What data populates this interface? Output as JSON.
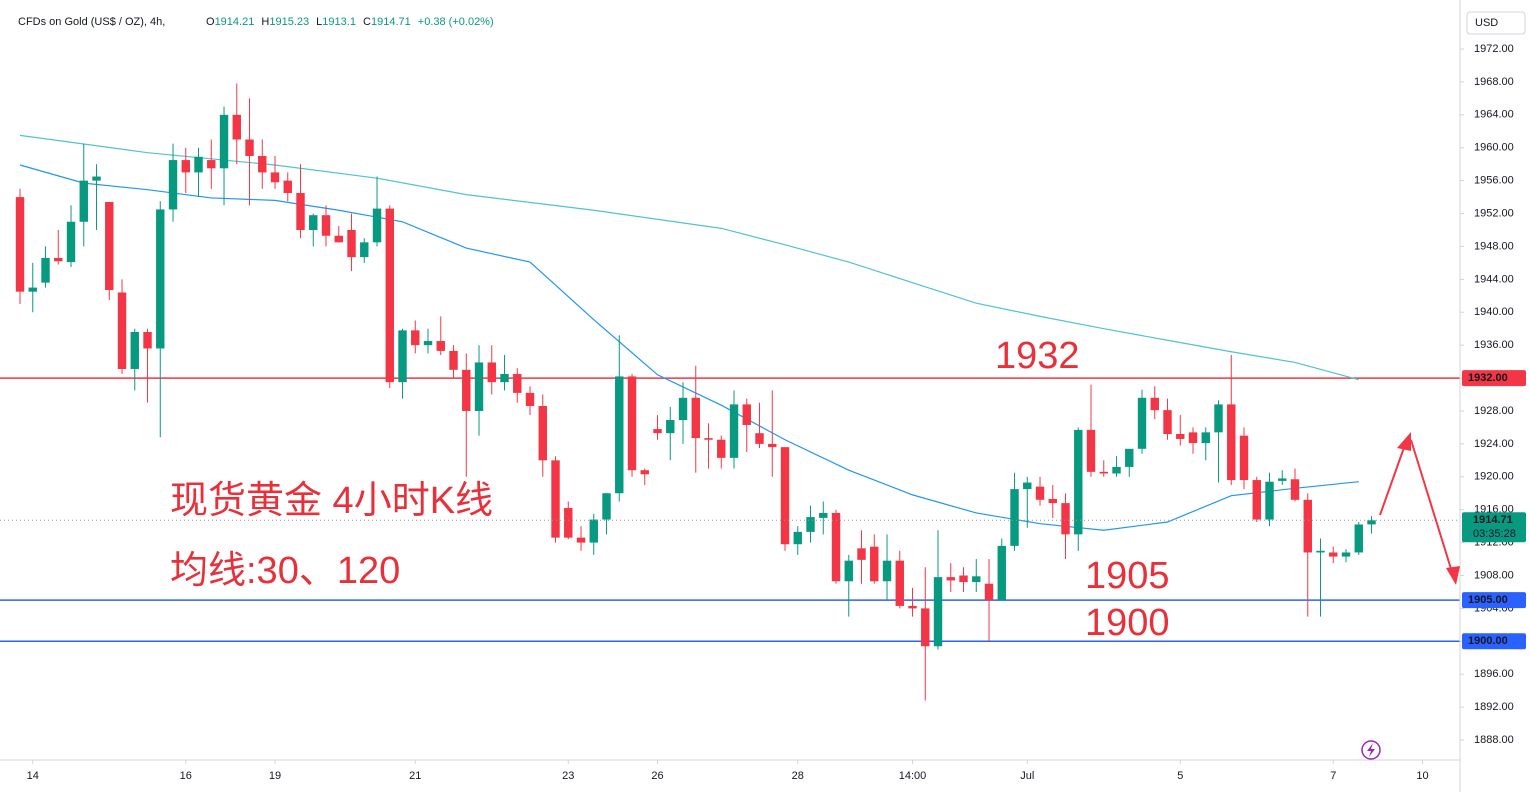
{
  "chart_data": {
    "type": "candlestick",
    "title": "CFDs on Gold (US$ / OZ), 4h,",
    "change": "+0.38 (+0.02%)",
    "ohlc_letters": [
      "O",
      "H",
      "L",
      "C"
    ],
    "currency": "USD",
    "countdown": "03:35:28",
    "up_color": "#089981",
    "down_color": "#f23645",
    "grid": false,
    "x": [
      0,
      1,
      2,
      3,
      4,
      5,
      6,
      7,
      8,
      9,
      10,
      11,
      12,
      13,
      14,
      15,
      16,
      17,
      18,
      19,
      20,
      21,
      22,
      23,
      24,
      25,
      26,
      27,
      28,
      29,
      30,
      31,
      32,
      33,
      34,
      35,
      36,
      37,
      38,
      39,
      40,
      41,
      42,
      43,
      44,
      45,
      46,
      47,
      48,
      49,
      50,
      51,
      52,
      53,
      54,
      55,
      56,
      57,
      58,
      59,
      60,
      61,
      62,
      63,
      64,
      65,
      66,
      67,
      68,
      69,
      70,
      71,
      72,
      73,
      74,
      75,
      76,
      77,
      78,
      79,
      80,
      81,
      82,
      83,
      84,
      85,
      86,
      87,
      88,
      89,
      90,
      91,
      92,
      93,
      94,
      95,
      96,
      97,
      98,
      99,
      100,
      101,
      102,
      103,
      104,
      105,
      106
    ],
    "open": [
      1954,
      1942.5,
      1943.6,
      1946.6,
      1946.1,
      1951,
      1956,
      1953.4,
      1942.4,
      1933.1,
      1937.6,
      1935.6,
      1952.5,
      1958.5,
      1957,
      1958.5,
      1957.5,
      1964,
      1961,
      1959,
      1957,
      1956,
      1954.5,
      1950,
      1951.8,
      1949.3,
      1950,
      1946.7,
      1948.5,
      1952.6,
      1931.5,
      1937.8,
      1936,
      1936.5,
      1935.3,
      1933,
      1928,
      1933.9,
      1931.5,
      1932.5,
      1930.2,
      1928.6,
      1922,
      1916.2,
      1912.6,
      1912,
      1914.8,
      1918,
      1932.2,
      1920.8,
      1925.8,
      1925.3,
      1926.9,
      1929.6,
      1924.7,
      1924.5,
      1922.3,
      1928.8,
      1925.3,
      1924,
      1923.6,
      1911.8,
      1913.3,
      1915,
      1915.6,
      1907.3,
      1911.3,
      1911.5,
      1907.3,
      1909.8,
      1904.3,
      1904,
      1899.4,
      1907.8,
      1908,
      1907.2,
      1907,
      1905,
      1911.6,
      1918.5,
      1918.8,
      1917.3,
      1916.8,
      1913,
      1925.7,
      1920.6,
      1920.4,
      1921.2,
      1923.4,
      1929.6,
      1928.1,
      1925.2,
      1925.4,
      1924.1,
      1925.4,
      1928.8,
      1925,
      1919.6,
      1914.8,
      1919.5,
      1919.7,
      1917.2,
      1910.8,
      1910.8,
      1910.3,
      1910.8,
      1914.21
    ],
    "high": [
      1955,
      1946,
      1948,
      1950,
      1953,
      1960.5,
      1958,
      1953.4,
      1944,
      1938,
      1938,
      1953.5,
      1960.5,
      1960,
      1960,
      1961,
      1965,
      1967.8,
      1966,
      1961,
      1959,
      1957,
      1958,
      1952,
      1953,
      1950.5,
      1952,
      1949,
      1956.5,
      1953,
      1938,
      1939,
      1938,
      1939.5,
      1936,
      1935,
      1936,
      1936,
      1934.8,
      1933.2,
      1931,
      1930,
      1922.5,
      1917,
      1914,
      1915.5,
      1918,
      1937.2,
      1932.5,
      1921,
      1927.5,
      1928.5,
      1931.5,
      1933.5,
      1926.5,
      1925,
      1930.5,
      1929.5,
      1929,
      1930.5,
      1923.6,
      1914,
      1916.5,
      1917,
      1916,
      1910.5,
      1913.5,
      1913,
      1913,
      1911,
      1906.5,
      1909,
      1913.5,
      1909.5,
      1909,
      1910,
      1910,
      1912.5,
      1920.5,
      1920,
      1920,
      1919,
      1918,
      1926,
      1931.2,
      1922,
      1922.5,
      1922.5,
      1930.6,
      1931,
      1929.5,
      1927.5,
      1926,
      1926,
      1929.3,
      1934.8,
      1926,
      1920,
      1920.5,
      1920.8,
      1921,
      1918,
      1912.5,
      1911.5,
      1911.2,
      1914.5,
      1915.23
    ],
    "low": [
      1941,
      1940,
      1943,
      1945.8,
      1945.5,
      1948,
      1950,
      1941.5,
      1932.5,
      1930.5,
      1929,
      1924.8,
      1951,
      1954.5,
      1954,
      1955,
      1953,
      1958,
      1953,
      1955,
      1955,
      1953.5,
      1949,
      1948,
      1948,
      1948.5,
      1945,
      1946,
      1948,
      1930.8,
      1929.5,
      1935,
      1935,
      1934.8,
      1932,
      1920,
      1925,
      1930,
      1930.5,
      1929,
      1927.5,
      1920,
      1912,
      1912.4,
      1911,
      1910.5,
      1913,
      1917,
      1920,
      1919,
      1924.5,
      1922,
      1924,
      1920.5,
      1921,
      1921,
      1921,
      1923,
      1923.5,
      1920,
      1911,
      1910.5,
      1912,
      1913,
      1907,
      1903,
      1907,
      1907,
      1905,
      1904,
      1903,
      1892.8,
      1899,
      1906,
      1906,
      1906,
      1900,
      1905,
      1911,
      1913.8,
      1916.5,
      1915,
      1910,
      1911,
      1920,
      1920,
      1920,
      1920,
      1922.8,
      1927,
      1924.5,
      1923.8,
      1922.8,
      1922,
      1919.3,
      1919,
      1918.5,
      1914.5,
      1914,
      1919,
      1917,
      1903,
      1903,
      1909.5,
      1909.6,
      1910.5,
      1913.1
    ],
    "close": [
      1942.5,
      1943,
      1946.6,
      1946.2,
      1951,
      1956,
      1956.5,
      1942.7,
      1933.1,
      1937.6,
      1935.6,
      1952.5,
      1958.5,
      1957,
      1958.9,
      1957.5,
      1964,
      1961,
      1959,
      1957,
      1955.8,
      1954.5,
      1950,
      1951.8,
      1949.3,
      1948.5,
      1946.7,
      1948.5,
      1952.6,
      1931.5,
      1937.8,
      1936,
      1936.5,
      1935.3,
      1933,
      1928,
      1933.9,
      1931.5,
      1932.5,
      1930.2,
      1928.6,
      1922,
      1912.6,
      1912.6,
      1912,
      1914.8,
      1918,
      1932.2,
      1920.8,
      1920.3,
      1925.3,
      1926.9,
      1929.6,
      1924.7,
      1924.5,
      1922.3,
      1928.8,
      1926.3,
      1924,
      1923.6,
      1911.8,
      1913.3,
      1915.1,
      1915.6,
      1907.3,
      1909.8,
      1909.9,
      1907.3,
      1909.8,
      1904.3,
      1904,
      1899.4,
      1907.8,
      1907.4,
      1907.2,
      1907.9,
      1905,
      1911.6,
      1918.5,
      1919.3,
      1917.2,
      1916.8,
      1913,
      1925.7,
      1920.6,
      1920.4,
      1921.2,
      1923.4,
      1929.6,
      1928.1,
      1925.2,
      1924.6,
      1924.1,
      1925.4,
      1928.8,
      1919.6,
      1919.6,
      1914.8,
      1919.4,
      1919.8,
      1917.2,
      1910.8,
      1911,
      1910.3,
      1910.8,
      1914.2,
      1914.71
    ],
    "series": [
      {
        "color": "#2196f3",
        "x": [
          0,
          5,
          10,
          15,
          20,
          25,
          30,
          35,
          40,
          45,
          50,
          55,
          60,
          65,
          70,
          75,
          80,
          85,
          90,
          95,
          100,
          105
        ],
        "values": [
          1957.9,
          1955.7,
          1954.9,
          1953.9,
          1953.6,
          1952.4,
          1951,
          1947.8,
          1946.1,
          1939.1,
          1932.4,
          1928.7,
          1924.5,
          1920.8,
          1917.8,
          1915.6,
          1914.3,
          1913.5,
          1914.5,
          1917.7,
          1918.6,
          1919.4
        ]
      },
      {
        "color": "#4fc3d0",
        "x": [
          0,
          10,
          20,
          28,
          35,
          45,
          55,
          60,
          65,
          70,
          75,
          80,
          85,
          90,
          95,
          100,
          105
        ],
        "values": [
          1961.5,
          1959.4,
          1957.9,
          1956.3,
          1954.3,
          1952.4,
          1950.2,
          1948.2,
          1946.1,
          1943.6,
          1941.1,
          1939.5,
          1938,
          1936.6,
          1935.2,
          1933.9,
          1931.8
        ]
      }
    ],
    "hlines": [
      {
        "value": 1932,
        "label": "1932.00",
        "color": "#f23645"
      },
      {
        "value": 1905,
        "label": "1905.00",
        "color": "#2962ff"
      },
      {
        "value": 1900,
        "label": "1900.00",
        "color": "#2962ff"
      }
    ],
    "annotations": [
      "1932",
      "1905",
      "1900",
      "现货黄金 4小时K线",
      "均线:30、120"
    ],
    "xlim": [
      -1.57,
      112.94
    ],
    "xticks": [
      {
        "value": 1,
        "label": "14"
      },
      {
        "value": 13,
        "label": "16"
      },
      {
        "value": 20,
        "label": "19"
      },
      {
        "value": 31,
        "label": "21"
      },
      {
        "value": 43,
        "label": "23"
      },
      {
        "value": 50,
        "label": "26"
      },
      {
        "value": 61,
        "label": "28"
      },
      {
        "value": 70,
        "label": "14:00"
      },
      {
        "value": 79,
        "label": "Jul"
      },
      {
        "value": 91,
        "label": "5"
      },
      {
        "value": 103,
        "label": "7"
      },
      {
        "value": 110,
        "label": "10"
      }
    ],
    "ylim": [
      1885.57,
      1977.96
    ],
    "yticks": [
      {
        "value": 1888,
        "label": "1888.00"
      },
      {
        "value": 1892,
        "label": "1892.00"
      },
      {
        "value": 1896,
        "label": "1896.00"
      },
      {
        "value": 1900,
        "label": "1900.00"
      },
      {
        "value": 1904,
        "label": "1904.00"
      },
      {
        "value": 1908,
        "label": "1908.00"
      },
      {
        "value": 1912,
        "label": "1912.00"
      },
      {
        "value": 1916,
        "label": "1916.00"
      },
      {
        "value": 1920,
        "label": "1920.00"
      },
      {
        "value": 1924,
        "label": "1924.00"
      },
      {
        "value": 1928,
        "label": "1928.00"
      },
      {
        "value": 1932,
        "label": "1932.00"
      },
      {
        "value": 1936,
        "label": "1936.00"
      },
      {
        "value": 1940,
        "label": "1940.00"
      },
      {
        "value": 1944,
        "label": "1944.00"
      },
      {
        "value": 1948,
        "label": "1948.00"
      },
      {
        "value": 1952,
        "label": "1952.00"
      },
      {
        "value": 1956,
        "label": "1956.00"
      },
      {
        "value": 1960,
        "label": "1960.00"
      },
      {
        "value": 1964,
        "label": "1964.00"
      },
      {
        "value": 1968,
        "label": "1968.00"
      },
      {
        "value": 1972,
        "label": "1972.00"
      }
    ]
  }
}
